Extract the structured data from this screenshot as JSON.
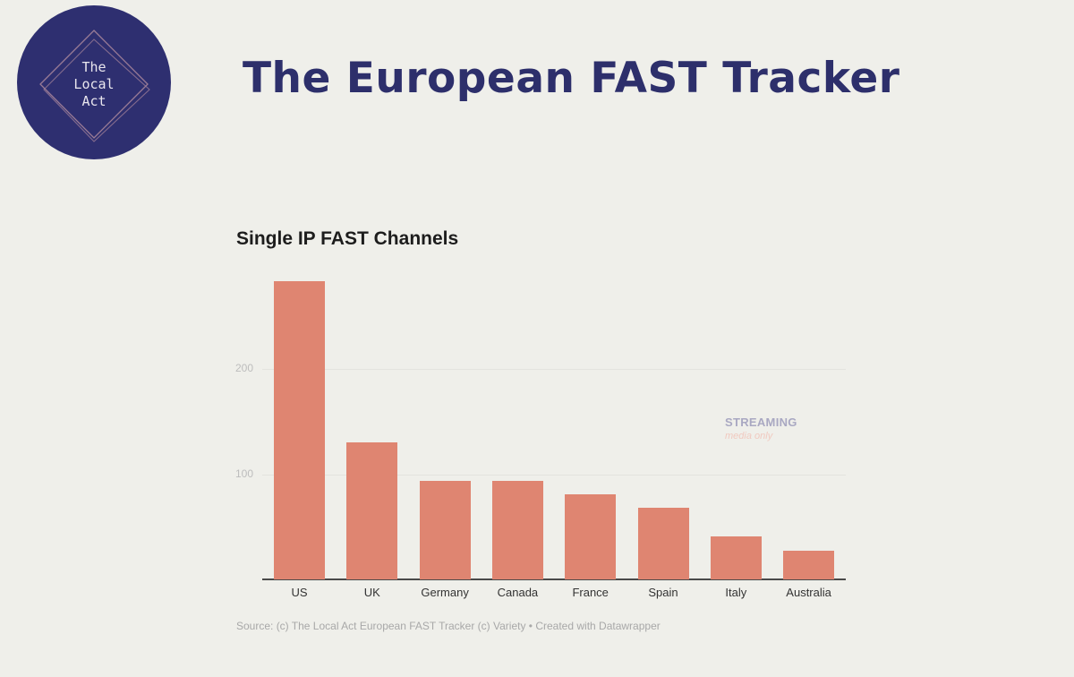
{
  "logo": {
    "lines": [
      "The",
      "Local",
      "Act"
    ]
  },
  "header": {
    "title": "The European FAST Tracker"
  },
  "chart": {
    "title": "Single IP FAST Channels",
    "watermark": {
      "main": "STREAMING",
      "sub": "media only"
    },
    "source": "Source: (c) The Local Act European FAST Tracker (c) Variety • Created with Datawrapper",
    "yticks": [
      "100",
      "200"
    ],
    "bar_color": "#df8571"
  },
  "chart_data": {
    "type": "bar",
    "title": "Single IP FAST Channels",
    "categories": [
      "US",
      "UK",
      "Germany",
      "Canada",
      "France",
      "Spain",
      "Italy",
      "Australia"
    ],
    "values": [
      283,
      130,
      94,
      94,
      81,
      68,
      41,
      27
    ],
    "xlabel": "",
    "ylabel": "",
    "ylim": [
      0,
      300
    ],
    "yticks": [
      100,
      200
    ],
    "grid": true,
    "legend": null,
    "source": "Source: (c) The Local Act European FAST Tracker (c) Variety • Created with Datawrapper"
  }
}
